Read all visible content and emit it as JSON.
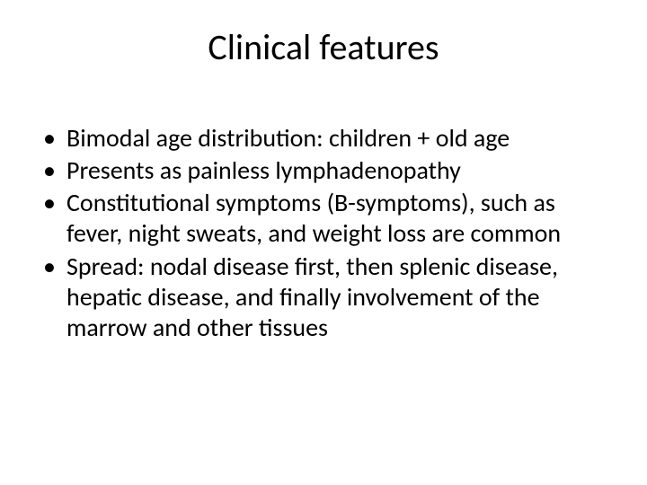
{
  "slide": {
    "title": "Clinical features",
    "title_fontsize": 40,
    "body_fontsize": 28,
    "line_height": 1.22,
    "text_color": "#000000",
    "background_color": "#ffffff",
    "bullets": [
      "Bimodal age distribution: children + old age",
      "Presents as painless lymphadenopathy",
      "Constitutional symptoms (B-symptoms), such as fever, night sweats, and weight loss are common",
      "Spread: nodal disease first, then splenic disease, hepatic disease, and finally involvement of the marrow and other tissues"
    ]
  }
}
